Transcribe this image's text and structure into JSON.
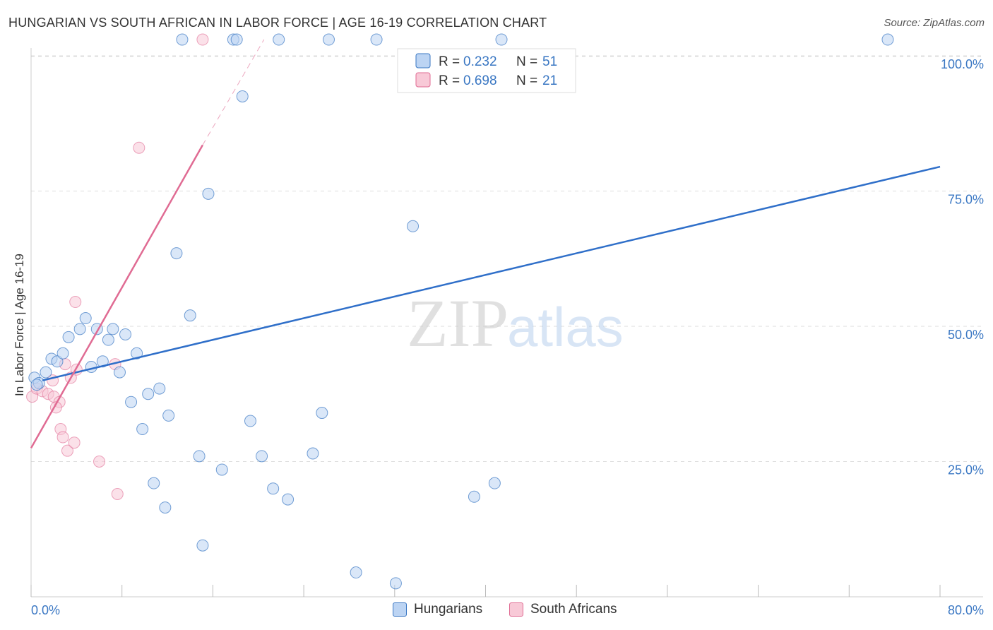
{
  "header": {
    "title": "HUNGARIAN VS SOUTH AFRICAN IN LABOR FORCE | AGE 16-19 CORRELATION CHART",
    "source": "Source: ZipAtlas.com"
  },
  "watermark": {
    "zip": "ZIP",
    "atlas": "atlas"
  },
  "colors": {
    "blue": "#3a77c3",
    "blue_fill": "#bcd4f3",
    "blue_line": "#2f6fc9",
    "pink": "#e06b93",
    "pink_fill": "#f8c9d7",
    "grid": "#dddddd"
  },
  "legend": {
    "r_label": "R =",
    "n_label": "N =",
    "rows": [
      {
        "r": "0.232",
        "n": "51"
      },
      {
        "r": "0.698",
        "n": "21"
      }
    ]
  },
  "bottom_legend": [
    {
      "label": "Hungarians"
    },
    {
      "label": "South Africans"
    }
  ],
  "chart_data": {
    "type": "scatter",
    "title": "HUNGARIAN VS SOUTH AFRICAN IN LABOR FORCE | AGE 16-19 CORRELATION CHART",
    "xlabel": "",
    "ylabel": "In Labor Force | Age 16-19",
    "xlim": [
      0,
      80
    ],
    "ylim": [
      0,
      100
    ],
    "x_tick_labels": [
      "0.0%",
      "80.0%"
    ],
    "y_ticks": [
      {
        "value": 25,
        "label": "25.0%"
      },
      {
        "value": 50,
        "label": "50.0%"
      },
      {
        "value": 75,
        "label": "75.0%"
      },
      {
        "value": 100,
        "label": "100.0%"
      }
    ],
    "series": [
      {
        "name": "Hungarians",
        "r": 0.232,
        "n": 51,
        "trend": {
          "x0": 1.0,
          "y0": 40.0,
          "x1": 80.0,
          "y1": 79.5
        },
        "points": [
          [
            0.3,
            40.5
          ],
          [
            0.7,
            39.5
          ],
          [
            0.5,
            39.2
          ],
          [
            1.3,
            41.5
          ],
          [
            1.8,
            44.0
          ],
          [
            2.3,
            43.5
          ],
          [
            2.8,
            45.0
          ],
          [
            3.3,
            48.0
          ],
          [
            4.3,
            49.5
          ],
          [
            4.8,
            51.5
          ],
          [
            5.3,
            42.5
          ],
          [
            5.8,
            49.5
          ],
          [
            6.3,
            43.5
          ],
          [
            6.8,
            47.5
          ],
          [
            7.2,
            49.5
          ],
          [
            7.8,
            41.5
          ],
          [
            8.3,
            48.5
          ],
          [
            8.8,
            36.0
          ],
          [
            9.3,
            45.0
          ],
          [
            9.8,
            31.0
          ],
          [
            10.3,
            37.5
          ],
          [
            10.8,
            21.0
          ],
          [
            11.3,
            38.5
          ],
          [
            11.8,
            16.5
          ],
          [
            12.1,
            33.5
          ],
          [
            12.8,
            63.5
          ],
          [
            13.3,
            103.0
          ],
          [
            14.0,
            52.0
          ],
          [
            14.8,
            26.0
          ],
          [
            15.1,
            9.5
          ],
          [
            15.6,
            74.5
          ],
          [
            16.8,
            23.5
          ],
          [
            17.8,
            103.0
          ],
          [
            18.1,
            103.0
          ],
          [
            18.6,
            92.5
          ],
          [
            19.3,
            32.5
          ],
          [
            20.3,
            26.0
          ],
          [
            21.3,
            20.0
          ],
          [
            21.8,
            103.0
          ],
          [
            22.6,
            18.0
          ],
          [
            24.8,
            26.5
          ],
          [
            25.6,
            34.0
          ],
          [
            26.2,
            103.0
          ],
          [
            28.6,
            4.5
          ],
          [
            30.4,
            103.0
          ],
          [
            32.1,
            2.5
          ],
          [
            33.6,
            68.5
          ],
          [
            39.0,
            18.5
          ],
          [
            40.8,
            21.0
          ],
          [
            41.4,
            103.0
          ],
          [
            75.4,
            103.0
          ]
        ]
      },
      {
        "name": "South Africans",
        "r": 0.698,
        "n": 21,
        "trend": {
          "x0": 0.0,
          "y0": 27.5,
          "x1": 15.1,
          "y1": 83.5
        },
        "trend_dashed": {
          "x0": 15.1,
          "y0": 83.5,
          "x1": 20.5,
          "y1": 103.0
        },
        "points": [
          [
            0.1,
            37.0
          ],
          [
            0.5,
            38.5
          ],
          [
            1.0,
            38.0
          ],
          [
            1.5,
            37.5
          ],
          [
            2.0,
            37.0
          ],
          [
            2.5,
            36.0
          ],
          [
            3.0,
            43.0
          ],
          [
            3.5,
            40.5
          ],
          [
            1.9,
            40.0
          ],
          [
            2.2,
            35.0
          ],
          [
            2.6,
            31.0
          ],
          [
            2.8,
            29.5
          ],
          [
            3.2,
            27.0
          ],
          [
            3.8,
            28.5
          ],
          [
            3.9,
            54.5
          ],
          [
            4.0,
            42.0
          ],
          [
            6.0,
            25.0
          ],
          [
            7.6,
            19.0
          ],
          [
            7.4,
            43.0
          ],
          [
            9.5,
            83.0
          ],
          [
            15.1,
            103.0
          ]
        ]
      }
    ]
  }
}
